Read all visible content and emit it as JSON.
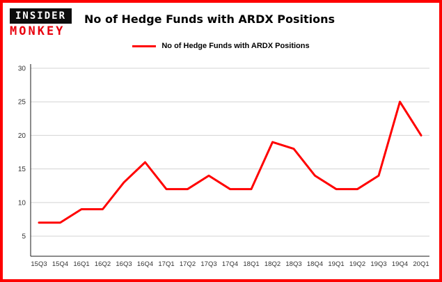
{
  "logo": {
    "line1": "INSIDER",
    "line2": "MONKEY"
  },
  "title": "No of Hedge Funds with ARDX Positions",
  "legend": {
    "label": "No of Hedge Funds with ARDX Positions",
    "color": "#ff0000"
  },
  "colors": {
    "border": "#fe0000",
    "line": "#ff0000",
    "grid": "#d3d3d3",
    "axis": "#1a1a1a",
    "tick_text": "#333333"
  },
  "chart_data": {
    "type": "line",
    "title": "No of Hedge Funds with ARDX Positions",
    "categories": [
      "15Q3",
      "15Q4",
      "16Q1",
      "16Q2",
      "16Q3",
      "16Q4",
      "17Q1",
      "17Q2",
      "17Q3",
      "17Q4",
      "18Q1",
      "18Q2",
      "18Q3",
      "18Q4",
      "19Q1",
      "19Q2",
      "19Q3",
      "19Q4",
      "20Q1"
    ],
    "values": [
      7,
      7,
      9,
      9,
      13,
      16,
      12,
      12,
      14,
      12,
      12,
      19,
      18,
      14,
      12,
      12,
      14,
      25,
      20
    ],
    "xlabel": "",
    "ylabel": "",
    "ylim": [
      2,
      30
    ],
    "yticks": [
      5,
      10,
      15,
      20,
      25,
      30
    ],
    "grid": true,
    "legend_position": "top",
    "line_color": "#ff0000"
  }
}
